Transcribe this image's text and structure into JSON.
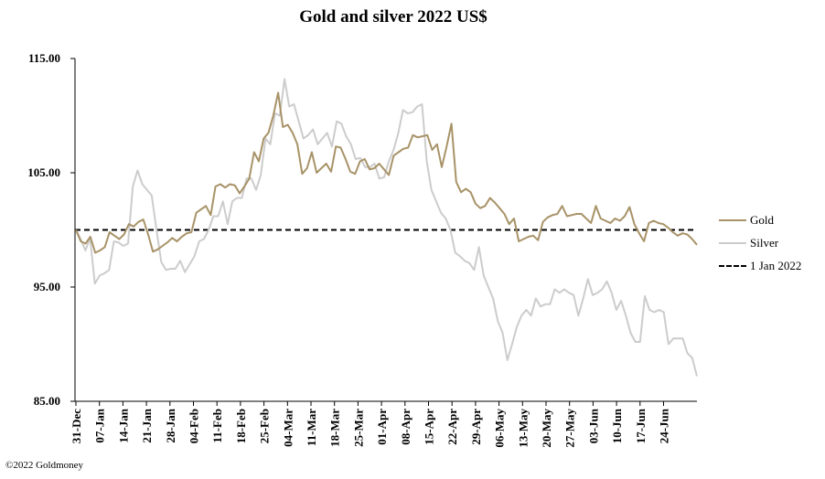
{
  "title": "Gold and silver 2022  US$",
  "copyright": "©2022 Goldmoney",
  "legend": {
    "gold": "Gold",
    "silver": "Silver",
    "baseline": "1 Jan 2022"
  },
  "colors": {
    "gold": "#a89368",
    "silver": "#cccccc",
    "baseline": "#000000"
  },
  "chart_data": {
    "type": "line",
    "title": "Gold and silver 2022  US$",
    "ylim": [
      85,
      115
    ],
    "yticks": [
      "115.00",
      "105.00",
      "95.00",
      "85.00"
    ],
    "ytick_values": [
      115,
      105,
      95,
      85
    ],
    "x_ticks": [
      "31-Dec",
      "07-Jan",
      "14-Jan",
      "21-Jan",
      "28-Jan",
      "04-Feb",
      "11-Feb",
      "18-Feb",
      "25-Feb",
      "04-Mar",
      "11-Mar",
      "18-Mar",
      "25-Mar",
      "01-Apr",
      "08-Apr",
      "15-Apr",
      "22-Apr",
      "29-Apr",
      "06-May",
      "13-May",
      "20-May",
      "27-May",
      "03-Jun",
      "10-Jun",
      "17-Jun",
      "24-Jun"
    ],
    "grid": false,
    "legend_position": "right",
    "series": [
      {
        "name": "Gold",
        "values": [
          100.0,
          99.0,
          98.8,
          99.4,
          98.0,
          98.2,
          98.5,
          99.8,
          99.5,
          99.2,
          99.6,
          100.5,
          100.3,
          100.7,
          100.9,
          99.6,
          98.1,
          98.3,
          98.6,
          98.9,
          99.3,
          99.0,
          99.4,
          99.7,
          99.8,
          101.5,
          101.8,
          102.1,
          101.3,
          103.8,
          104.0,
          103.7,
          104.0,
          103.9,
          103.2,
          103.8,
          104.5,
          106.8,
          106.0,
          108.0,
          108.5,
          110.0,
          112.0,
          109.0,
          109.2,
          108.5,
          107.5,
          104.9,
          105.4,
          106.8,
          105.0,
          105.4,
          105.8,
          105.1,
          107.3,
          107.2,
          106.2,
          105.1,
          104.9,
          106.0,
          106.2,
          105.3,
          105.4,
          105.8,
          105.3,
          104.8,
          106.5,
          106.8,
          107.1,
          107.2,
          108.3,
          108.1,
          108.2,
          108.3,
          107.0,
          107.5,
          105.5,
          107.3,
          109.3,
          104.2,
          103.3,
          103.6,
          103.3,
          102.3,
          101.9,
          102.1,
          102.8,
          102.4,
          101.9,
          101.4,
          100.5,
          101.0,
          99.0,
          99.2,
          99.4,
          99.5,
          99.1,
          100.7,
          101.1,
          101.3,
          101.4,
          102.1,
          101.2,
          101.3,
          101.4,
          101.4,
          101.0,
          100.6,
          102.1,
          101.0,
          100.8,
          100.6,
          101.0,
          100.8,
          101.2,
          102.0,
          100.5,
          99.7,
          99.0,
          100.6,
          100.8,
          100.6,
          100.5,
          100.2,
          99.8,
          99.5,
          99.7,
          99.6,
          99.2,
          98.7
        ],
        "color": "#a89368"
      },
      {
        "name": "Silver",
        "values": [
          100.0,
          99.2,
          98.2,
          99.3,
          95.3,
          96.0,
          96.2,
          96.5,
          99.0,
          98.9,
          98.6,
          98.8,
          103.8,
          105.2,
          104.0,
          103.5,
          103.0,
          100.0,
          97.2,
          96.5,
          96.6,
          96.6,
          97.3,
          96.3,
          97.0,
          97.7,
          99.0,
          99.2,
          100.0,
          101.2,
          101.2,
          102.5,
          100.5,
          102.5,
          102.8,
          102.8,
          104.5,
          104.5,
          103.5,
          104.8,
          108.0,
          107.5,
          110.2,
          110.0,
          113.2,
          110.8,
          111.0,
          109.5,
          108.0,
          108.3,
          108.8,
          107.5,
          108.0,
          108.5,
          107.3,
          109.5,
          109.3,
          108.2,
          107.5,
          106.2,
          106.3,
          105.5,
          105.5,
          105.8,
          104.5,
          104.6,
          106.0,
          107.0,
          108.5,
          110.5,
          110.2,
          110.3,
          110.8,
          111.0,
          106.0,
          103.5,
          102.5,
          101.5,
          101.0,
          100.0,
          98.0,
          97.7,
          97.3,
          97.1,
          96.5,
          98.5,
          96.0,
          95.0,
          94.0,
          92.0,
          91.0,
          88.6,
          90.0,
          91.5,
          92.5,
          93.0,
          92.5,
          94.0,
          93.3,
          93.5,
          93.5,
          94.8,
          94.5,
          94.8,
          94.5,
          94.3,
          92.5,
          94.0,
          95.7,
          94.3,
          94.5,
          94.8,
          95.5,
          94.5,
          93.0,
          93.8,
          92.5,
          91.0,
          90.2,
          90.2,
          94.2,
          93.0,
          92.8,
          93.0,
          92.8,
          90.0,
          90.5,
          90.5,
          90.5,
          89.2,
          88.8,
          87.2
        ],
        "color": "#cccccc"
      },
      {
        "name": "1 Jan 2022",
        "values": [
          100,
          100
        ],
        "style": "dashed",
        "color": "#000000"
      }
    ]
  }
}
